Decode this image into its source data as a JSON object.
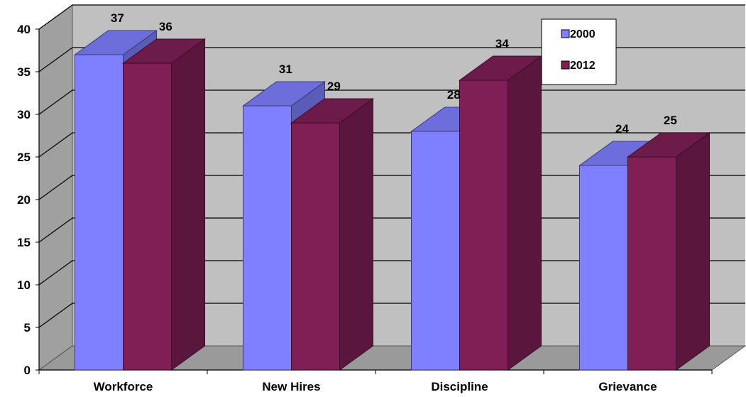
{
  "chart_data": {
    "type": "bar",
    "title": "",
    "xlabel": "",
    "ylabel": "",
    "categories": [
      "Workforce",
      "New Hires",
      "Discipline",
      "Grievance"
    ],
    "series": [
      {
        "name": "2000",
        "values": [
          37,
          31,
          28,
          24
        ],
        "color": "#7f80ff",
        "labels": [
          "37",
          "31",
          "28",
          "24"
        ]
      },
      {
        "name": "2012",
        "values": [
          36,
          29,
          34,
          25
        ],
        "color": "#7f1f56",
        "labels": [
          "36",
          "29",
          "34",
          "25"
        ]
      }
    ],
    "ylim": [
      0,
      40
    ],
    "yticks": [
      0,
      5,
      10,
      15,
      20,
      25,
      30,
      35,
      40
    ],
    "ytick_labels": [
      "0",
      "5",
      "10",
      "15",
      "20",
      "25",
      "30",
      "35",
      "40"
    ],
    "grid": true,
    "three_d": true,
    "legend_position": "top-right",
    "colors": {
      "back_wall": "#c0c0c0",
      "side_wall": "#a0a0a0",
      "floor": "#9a9a9a",
      "grid": "#000000"
    }
  }
}
